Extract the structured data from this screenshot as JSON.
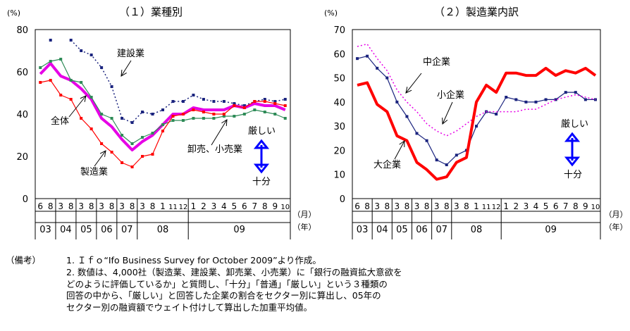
{
  "charts": [
    {
      "title": "（１）業種別",
      "y_unit": "(%)",
      "chart_data": {
        "type": "line",
        "title": "（１）業種別",
        "ylabel": "(%)",
        "ylim": [
          0,
          80
        ],
        "yticks": [
          0,
          20,
          40,
          60,
          80
        ],
        "x_tick_labels": [
          "6",
          "8",
          "3",
          "8",
          "3",
          "8",
          "3",
          "8",
          "3",
          "8",
          "3",
          "8",
          "1",
          "11",
          "12",
          "1",
          "2",
          "3",
          "4",
          "5",
          "6",
          "7",
          "8",
          "9",
          "10"
        ],
        "year_labels": [
          "03",
          "04",
          "05",
          "06",
          "07",
          "08",
          "09"
        ],
        "unit_labels": [
          "（月）",
          "（年）"
        ],
        "series": [
          {
            "name": "建設業",
            "color": "#1a237e",
            "style": "dotted-marker",
            "values": [
              null,
              75,
              null,
              75,
              70,
              68,
              62,
              53,
              38,
              36,
              41,
              40,
              42,
              46,
              46,
              49,
              47,
              46,
              46,
              45,
              44,
              46,
              47,
              46,
              47
            ]
          },
          {
            "name": "全体",
            "color": "#e600e6",
            "style": "thick",
            "values": [
              59,
              64,
              58,
              56,
              52,
              47,
              38,
              34,
              28,
              23,
              27,
              30,
              35,
              40,
              40,
              43,
              42,
              42,
              42,
              44,
              43,
              45,
              44,
              44,
              42
            ]
          },
          {
            "name": "卸売、小売業",
            "color": "#2e8b57",
            "style": "marker",
            "values": [
              62,
              65,
              66,
              56,
              55,
              48,
              40,
              38,
              30,
              26,
              29,
              31,
              35,
              37,
              37,
              38,
              38,
              38,
              39,
              39,
              40,
              42,
              41,
              40,
              38
            ]
          },
          {
            "name": "製造業",
            "color": "#ff0000",
            "style": "marker",
            "values": [
              55,
              56,
              49,
              47,
              38,
              33,
              26,
              22,
              17,
              15,
              20,
              21,
              32,
              39,
              40,
              42,
              41,
              40,
              40,
              44,
              43,
              46,
              46,
              45,
              44
            ]
          }
        ],
        "annotations": [
          "建設業",
          "全体",
          "卸売、小売業",
          "製造業",
          "厳しい",
          "十分"
        ]
      }
    },
    {
      "title": "（２）製造業内訳",
      "y_unit": "(%)",
      "chart_data": {
        "type": "line",
        "title": "（２）製造業内訳",
        "ylabel": "(%)",
        "ylim": [
          0,
          70
        ],
        "yticks": [
          0,
          10,
          20,
          30,
          40,
          50,
          60,
          70
        ],
        "x_tick_labels": [
          "6",
          "8",
          "3",
          "8",
          "3",
          "8",
          "3",
          "8",
          "3",
          "8",
          "3",
          "8",
          "1",
          "11",
          "12",
          "1",
          "2",
          "3",
          "4",
          "5",
          "6",
          "7",
          "8",
          "9",
          "10"
        ],
        "year_labels": [
          "03",
          "04",
          "05",
          "06",
          "07",
          "08",
          "09"
        ],
        "unit_labels": [
          "（月）",
          "（年）"
        ],
        "series": [
          {
            "name": "中企業",
            "color": "#1a237e",
            "style": "marker",
            "values": [
              58,
              59,
              54,
              50,
              40,
              34,
              27,
              24,
              16,
              14,
              18,
              20,
              30,
              36,
              35,
              42,
              41,
              40,
              40,
              41,
              41,
              44,
              44,
              41,
              41
            ]
          },
          {
            "name": "小企業",
            "color": "#e600e6",
            "style": "dotted",
            "values": [
              63,
              64,
              58,
              53,
              45,
              40,
              36,
              31,
              28,
              26,
              28,
              31,
              34,
              36,
              36,
              36,
              36,
              37,
              37,
              39,
              41,
              42,
              43,
              42,
              41
            ]
          },
          {
            "name": "大企業",
            "color": "#ff0000",
            "style": "thick",
            "values": [
              47,
              48,
              39,
              36,
              26,
              24,
              15,
              12,
              8,
              9,
              15,
              17,
              40,
              47,
              44,
              52,
              52,
              51,
              51,
              54,
              51,
              53,
              52,
              54,
              51
            ]
          }
        ],
        "annotations": [
          "中企業",
          "小企業",
          "大企業",
          "厳しい",
          "十分"
        ]
      }
    }
  ],
  "notes": {
    "label": "（備考）",
    "items": [
      "1. Ｉｆｏ“Ifo Business Survey for October 2009”より作成。",
      "2. 数値は、4,000社（製造業、建設業、卸売業、小売業）に「銀行の融資拡大意欲を\nどのように評価しているか」と質問し、「十分」「普通」「厳しい」という３種類の\n回答の中から、「厳しい」と回答した企業の割合をセクター別に算出し、05年の\nセクター別の融資額でウェイト付けして算出した加重平均値。"
    ]
  }
}
